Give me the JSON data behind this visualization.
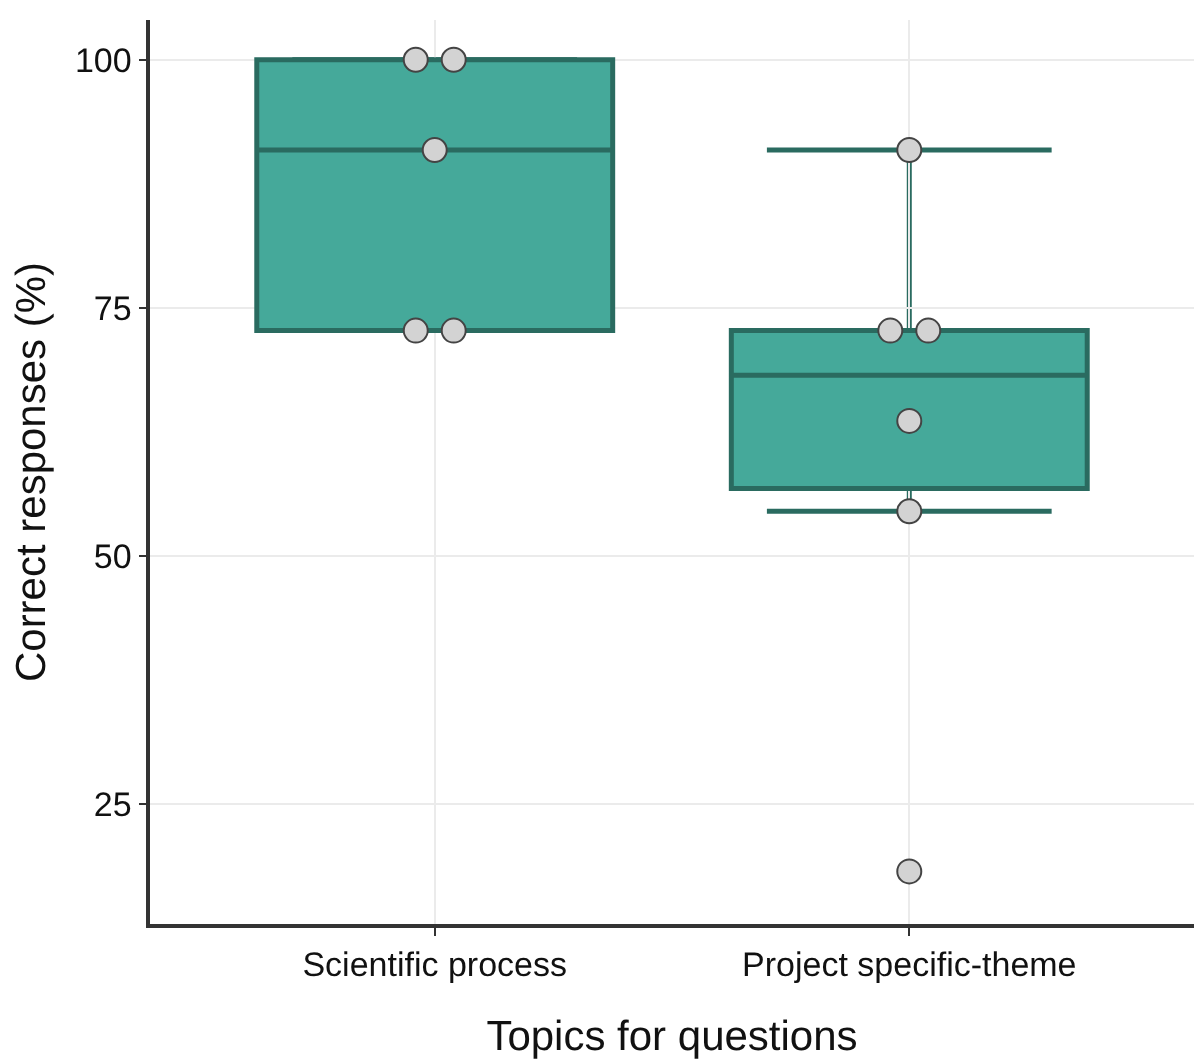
{
  "chart_data": {
    "type": "box",
    "xlabel": "Topics for questions",
    "ylabel": "Correct responses (%)",
    "categories": [
      "Scientific process",
      "Project specific-theme"
    ],
    "color": "#45a99a",
    "boxes": [
      {
        "low": 72.7,
        "q1": 72.7,
        "median": 90.9,
        "q3": 100,
        "high": 100
      },
      {
        "low": 54.5,
        "q1": 56.8,
        "median": 68.2,
        "q3": 72.7,
        "high": 90.9
      }
    ],
    "series": [
      {
        "type": "scatter",
        "color": "#d3d3d3",
        "x": [
          "Scientific process",
          "Scientific process",
          "Scientific process",
          "Scientific process",
          "Scientific process",
          "Project specific-theme",
          "Project specific-theme",
          "Project specific-theme",
          "Project specific-theme",
          "Project specific-theme",
          "Project specific-theme"
        ],
        "values": [
          100,
          100,
          90.9,
          72.7,
          72.7,
          90.9,
          72.7,
          72.7,
          63.6,
          54.5,
          18.2
        ]
      }
    ],
    "ylim": [
      12.9,
      104
    ],
    "yticks": [
      25,
      50,
      75,
      100
    ],
    "grid": true,
    "marker": "circle"
  }
}
